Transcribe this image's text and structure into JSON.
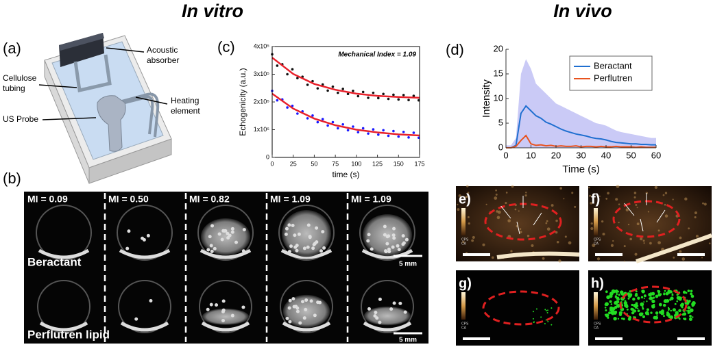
{
  "headings": {
    "in_vitro": "In vitro",
    "in_vivo": "In vivo"
  },
  "panel_a": {
    "label": "(a)",
    "callouts": {
      "absorber": [
        "Acoustic",
        "absorber"
      ],
      "tubing": [
        "Cellulose",
        "tubing"
      ],
      "heating": [
        "Heating",
        "element"
      ],
      "probe": [
        "US Probe"
      ]
    }
  },
  "panel_b": {
    "label": "(b)",
    "mi_labels": [
      "MI = 0.09",
      "MI = 0.50",
      "MI = 0.82",
      "MI = 1.09",
      "MI = 1.09"
    ],
    "rows": [
      "Beractant",
      "Perflutren lipid"
    ],
    "scale_bar": "5 mm"
  },
  "chart_data": [
    {
      "type": "scatter",
      "panel_label": "(c)",
      "annotation": "Mechanical Index = 1.09",
      "x_label": "time (s)",
      "y_label": "Echogenicity (a.u.)",
      "xlim": [
        0,
        175
      ],
      "xticks": [
        0,
        25,
        50,
        75,
        100,
        125,
        150,
        175
      ],
      "ylim": [
        0,
        400000
      ],
      "yticks": [
        0,
        {
          "value": 100000,
          "label": "1x10⁵"
        },
        {
          "value": 200000,
          "label": "2x10⁵"
        },
        {
          "value": 300000,
          "label": "3x10⁵"
        },
        {
          "value": 400000,
          "label": "4x10⁵"
        }
      ],
      "series": [
        {
          "color": "#111111",
          "x": [
            0,
            6,
            12,
            18,
            24,
            30,
            36,
            42,
            48,
            54,
            60,
            66,
            72,
            78,
            84,
            90,
            96,
            102,
            108,
            114,
            120,
            126,
            132,
            138,
            144,
            150,
            156,
            162,
            168,
            174
          ],
          "values": [
            372000,
            331000,
            336000,
            300000,
            318000,
            286000,
            291000,
            262000,
            275000,
            249000,
            263000,
            241000,
            255000,
            233000,
            247000,
            229000,
            240000,
            221000,
            236000,
            215000,
            233000,
            214000,
            229000,
            211000,
            226000,
            209000,
            225000,
            207000,
            222000,
            206000
          ]
        },
        {
          "color": "#1a1aff",
          "x": [
            0,
            6,
            12,
            18,
            24,
            30,
            36,
            42,
            48,
            54,
            60,
            66,
            72,
            78,
            84,
            90,
            96,
            102,
            108,
            114,
            120,
            126,
            132,
            138,
            144,
            150,
            156,
            162,
            168,
            174
          ],
          "values": [
            240000,
            206000,
            209000,
            180000,
            186000,
            158000,
            166000,
            141000,
            151000,
            127000,
            138000,
            115000,
            127000,
            105000,
            119000,
            98000,
            111000,
            91000,
            105000,
            86000,
            101000,
            82000,
            98000,
            78000,
            95000,
            75000,
            92000,
            72000,
            89000,
            71000
          ]
        },
        {
          "color": "#e8202a",
          "style": "line",
          "x": [
            0,
            25,
            50,
            75,
            100,
            125,
            150,
            175
          ],
          "values": [
            360000,
            301000,
            265000,
            244000,
            230000,
            222000,
            218000,
            215000
          ]
        },
        {
          "color": "#e8202a",
          "style": "line",
          "x": [
            0,
            25,
            50,
            75,
            100,
            125,
            150,
            175
          ],
          "values": [
            230000,
            176000,
            140000,
            116000,
            100000,
            90000,
            83000,
            79000
          ]
        }
      ]
    },
    {
      "type": "line",
      "panel_label": "(d)",
      "x_label": "Time (s)",
      "y_label": "Intensity",
      "xlim": [
        0,
        60
      ],
      "xticks": [
        0,
        10,
        20,
        30,
        40,
        50,
        60
      ],
      "ylim": [
        0,
        20
      ],
      "yticks": [
        0,
        5,
        10,
        15,
        20
      ],
      "legend": "upper right",
      "x": [
        0,
        2,
        4,
        6,
        8,
        10,
        12,
        14,
        16,
        18,
        20,
        22,
        24,
        26,
        28,
        30,
        32,
        34,
        36,
        38,
        40,
        42,
        44,
        46,
        48,
        50,
        52,
        54,
        56,
        58,
        60
      ],
      "series": [
        {
          "name": "Beractant",
          "color": "#1f6fd0",
          "band_color": "#b3b3f2",
          "values": [
            0,
            0,
            0.5,
            7,
            8.5,
            7.5,
            6.5,
            6,
            5.2,
            4.8,
            4.3,
            3.8,
            3.4,
            3.1,
            2.8,
            2.6,
            2.4,
            2.1,
            1.9,
            1.8,
            1.6,
            1.3,
            1.1,
            1,
            0.9,
            0.8,
            0.8,
            0.7,
            0.7,
            0.6,
            0.6
          ],
          "upper": [
            0.5,
            0.5,
            2,
            15,
            18,
            16,
            13,
            12,
            11,
            10,
            9,
            8.5,
            8,
            7.5,
            7,
            6.5,
            6,
            5.5,
            5,
            4.8,
            4.5,
            4,
            3.5,
            3.2,
            3,
            2.8,
            2.6,
            2.4,
            2.2,
            2,
            2
          ]
        },
        {
          "name": "Perflutren",
          "color": "#e8531e",
          "values": [
            0,
            0,
            0.3,
            1.5,
            2.5,
            0.8,
            0.5,
            0.6,
            0.4,
            0.5,
            0.3,
            0.4,
            0.3,
            0.3,
            0.4,
            0.2,
            0.3,
            0.3,
            0.2,
            0.3,
            0.2,
            0.2,
            0.3,
            0.2,
            0.2,
            0.2,
            0.1,
            0.2,
            0.1,
            0.1,
            0.1
          ]
        }
      ]
    }
  ],
  "panels_e_h": {
    "labels": [
      "e)",
      "f)",
      "g)",
      "h)"
    ],
    "colorbar": [
      "CPS",
      "CA"
    ]
  }
}
